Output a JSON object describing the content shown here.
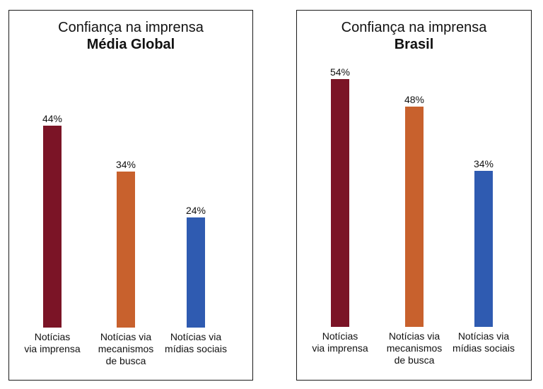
{
  "chart_data": [
    {
      "type": "bar",
      "title": "Confiança na imprensa",
      "subtitle": "Média Global",
      "categories": [
        [
          "Notícias",
          "via imprensa"
        ],
        [
          "Notícias via",
          "mecanismos",
          "de busca"
        ],
        [
          "Notícias via",
          "mídias sociais"
        ]
      ],
      "values": [
        44,
        34,
        24
      ],
      "value_labels": [
        "44%",
        "34%",
        "24%"
      ],
      "colors": [
        "#7b1426",
        "#c8612d",
        "#2f5bb1"
      ],
      "ylim": [
        0,
        60
      ],
      "grid": false
    },
    {
      "type": "bar",
      "title": "Confiança na imprensa",
      "subtitle": "Brasil",
      "categories": [
        [
          "Notícias",
          "via imprensa"
        ],
        [
          "Notícias via",
          "mecanismos",
          "de busca"
        ],
        [
          "Notícias via",
          "mídias sociais"
        ]
      ],
      "values": [
        54,
        48,
        34
      ],
      "value_labels": [
        "54%",
        "48%",
        "34%"
      ],
      "colors": [
        "#7b1426",
        "#c8612d",
        "#2f5bb1"
      ],
      "ylim": [
        0,
        60
      ],
      "grid": false
    }
  ]
}
